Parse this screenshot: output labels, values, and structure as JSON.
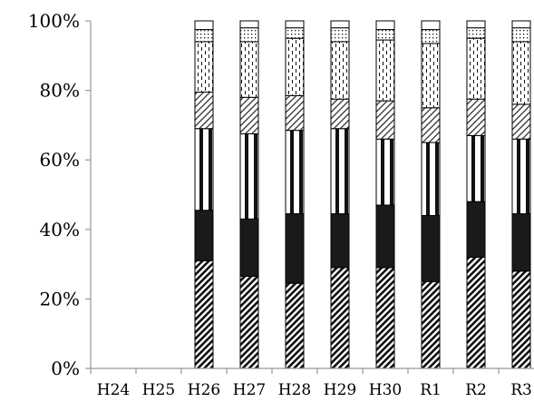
{
  "chart_data": {
    "type": "bar",
    "stacked": true,
    "normalized": true,
    "title": "",
    "xlabel": "",
    "ylabel": "",
    "ylim": [
      0,
      100
    ],
    "y_ticks": [
      "0%",
      "20%",
      "40%",
      "60%",
      "80%",
      "100%"
    ],
    "categories": [
      "H24",
      "H25",
      "H26",
      "H27",
      "H28",
      "H29",
      "H30",
      "R1",
      "R2",
      "R3"
    ],
    "grid": false,
    "legend": "none",
    "series": [
      {
        "pattern": "dense-diagonal-hatch",
        "values": [
          null,
          null,
          31,
          26.5,
          24.5,
          29,
          29,
          25,
          32,
          28
        ]
      },
      {
        "pattern": "solid-black",
        "values": [
          null,
          null,
          14.5,
          16.5,
          20,
          15.5,
          18,
          19,
          16,
          16.5
        ]
      },
      {
        "pattern": "vertical-stripes",
        "values": [
          null,
          null,
          23.5,
          24.5,
          24,
          24.5,
          19,
          21,
          19,
          21.5
        ]
      },
      {
        "pattern": "light-diagonal-hatch",
        "values": [
          null,
          null,
          10.5,
          10.5,
          10,
          8.5,
          11,
          10,
          10.5,
          10
        ]
      },
      {
        "pattern": "dashed-vertical",
        "values": [
          null,
          null,
          14.5,
          16,
          16.5,
          16.5,
          17.5,
          18.5,
          17.5,
          18
        ]
      },
      {
        "pattern": "dotted",
        "values": [
          null,
          null,
          3.5,
          4,
          3,
          4,
          3,
          4,
          3,
          4
        ]
      },
      {
        "pattern": "blank",
        "values": [
          null,
          null,
          2.5,
          2,
          2,
          2,
          2.5,
          2.5,
          2,
          2
        ]
      }
    ],
    "colors": {
      "axis": "#999999",
      "outline": "#000000",
      "fill_dark": "#1a1a1a",
      "background": "#ffffff"
    }
  }
}
